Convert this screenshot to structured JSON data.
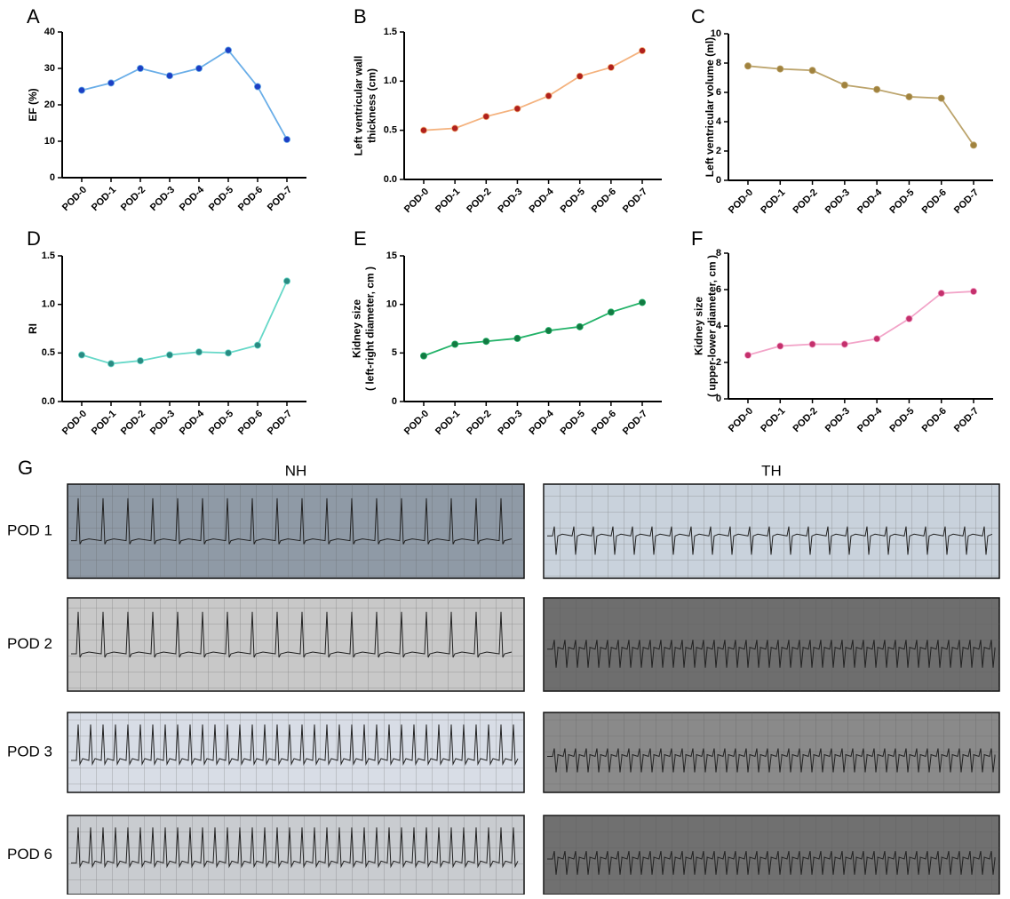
{
  "chart_data": [
    {
      "type": "line",
      "label": "A",
      "ylabel": [
        "EF (%)"
      ],
      "categories": [
        "POD-0",
        "POD-1",
        "POD-2",
        "POD-3",
        "POD-4",
        "POD-5",
        "POD-6",
        "POD-7"
      ],
      "values": [
        24,
        26,
        30,
        28,
        30,
        35,
        25,
        10.5
      ],
      "color": "#6aaee8",
      "marker_color": "#1d3fc4",
      "ylim": [
        0,
        40
      ],
      "yticks": [
        0,
        10,
        20,
        30,
        40
      ]
    },
    {
      "type": "line",
      "label": "B",
      "ylabel": [
        "Left ventricular wall",
        "thickness (cm)"
      ],
      "categories": [
        "POD-0",
        "POD-1",
        "POD-2",
        "POD-3",
        "POD-4",
        "POD-5",
        "POD-6",
        "POD-7"
      ],
      "values": [
        0.5,
        0.52,
        0.64,
        0.72,
        0.85,
        1.05,
        1.14,
        1.31
      ],
      "color": "#f4b27e",
      "marker_color": "#b0201c",
      "ylim": [
        0,
        1.5
      ],
      "yticks": [
        {
          "value": 0,
          "label": "0.0"
        },
        0.5,
        {
          "value": 1,
          "label": "1.0"
        },
        1.5
      ]
    },
    {
      "type": "line",
      "label": "C",
      "ylabel": [
        "Left ventricular volume (ml)"
      ],
      "categories": [
        "POD-0",
        "POD-1",
        "POD-2",
        "POD-3",
        "POD-4",
        "POD-5",
        "POD-6",
        "POD-7"
      ],
      "values": [
        7.8,
        7.6,
        7.5,
        6.5,
        6.2,
        5.7,
        5.6,
        2.4
      ],
      "color": "#bca46c",
      "marker_color": "#a0823e",
      "ylim": [
        0,
        10
      ],
      "yticks": [
        0,
        2,
        4,
        6,
        8,
        10
      ]
    },
    {
      "type": "line",
      "label": "D",
      "ylabel": [
        "RI"
      ],
      "categories": [
        "POD-0",
        "POD-1",
        "POD-2",
        "POD-3",
        "POD-4",
        "POD-5",
        "POD-6",
        "POD-7"
      ],
      "values": [
        0.48,
        0.39,
        0.42,
        0.48,
        0.51,
        0.5,
        0.58,
        1.24
      ],
      "color": "#66d8c8",
      "marker_color": "#2a8a82",
      "ylim": [
        0,
        1.5
      ],
      "yticks": [
        {
          "value": 0,
          "label": "0.0"
        },
        0.5,
        {
          "value": 1,
          "label": "1.0"
        },
        1.5
      ]
    },
    {
      "type": "line",
      "label": "E",
      "ylabel": [
        "Kidney size",
        "( left-right diameter, cm )"
      ],
      "categories": [
        "POD-0",
        "POD-1",
        "POD-2",
        "POD-3",
        "POD-4",
        "POD-5",
        "POD-6",
        "POD-7"
      ],
      "values": [
        4.7,
        5.9,
        6.2,
        6.5,
        7.3,
        7.7,
        9.2,
        10.2
      ],
      "color": "#22b268",
      "marker_color": "#137a42",
      "ylim": [
        0,
        15
      ],
      "yticks": [
        0,
        5,
        10,
        15
      ]
    },
    {
      "type": "line",
      "label": "F",
      "ylabel": [
        "Kidney size",
        "( upper-lower diameter, cm )"
      ],
      "categories": [
        "POD-0",
        "POD-1",
        "POD-2",
        "POD-3",
        "POD-4",
        "POD-5",
        "POD-6",
        "POD-7"
      ],
      "values": [
        2.4,
        2.9,
        3.0,
        3.0,
        3.3,
        4.4,
        5.8,
        5.9
      ],
      "color": "#f2a4c8",
      "marker_color": "#c4306c",
      "ylim": [
        0,
        8
      ],
      "yticks": [
        0,
        2,
        4,
        6,
        8
      ]
    }
  ],
  "ecg_panel": {
    "label": "G",
    "columns": [
      "NH",
      "TH"
    ],
    "rows": [
      "POD 1",
      "POD 2",
      "POD 3",
      "POD 6"
    ]
  }
}
